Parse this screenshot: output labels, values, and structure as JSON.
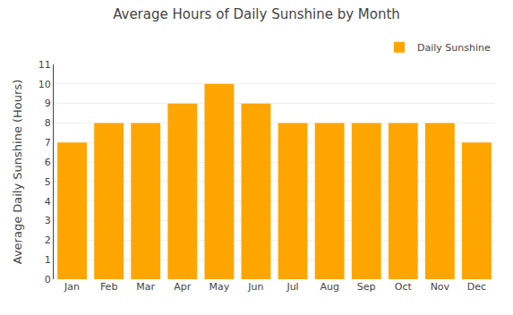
{
  "chart_data": {
    "type": "bar",
    "title": "Average Hours of Daily Sunshine by Month",
    "ylabel": "Average Daily Sunshine (Hours)",
    "categories": [
      "Jan",
      "Feb",
      "Mar",
      "Apr",
      "May",
      "Jun",
      "Jul",
      "Aug",
      "Sep",
      "Oct",
      "Nov",
      "Dec"
    ],
    "series": [
      {
        "name": "Daily Sunshine",
        "color": "#FFA500",
        "values": [
          7,
          8,
          8,
          9,
          10,
          9,
          8,
          8,
          8,
          8,
          8,
          7
        ]
      }
    ],
    "ylim": [
      0,
      11
    ],
    "yticks": [
      0,
      1,
      2,
      3,
      4,
      5,
      6,
      7,
      8,
      9,
      10,
      11
    ],
    "grid": true,
    "legend": "upper right"
  }
}
